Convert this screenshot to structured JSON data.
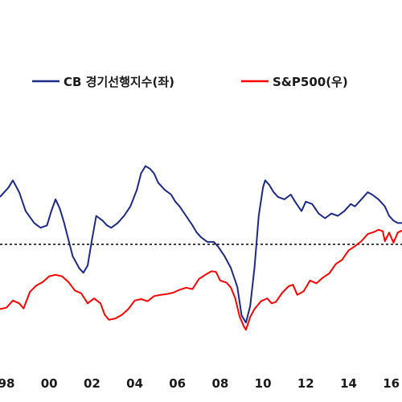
{
  "chart_data": {
    "type": "line",
    "x_tick_labels": [
      "98",
      "00",
      "02",
      "04",
      "06",
      "08",
      "10",
      "12",
      "14",
      "16"
    ],
    "x_tick_years": [
      1998,
      2000,
      2002,
      2004,
      2006,
      2008,
      2010,
      2012,
      2014,
      2016
    ],
    "x_range": [
      1997.7,
      2016.5
    ],
    "reference_line": {
      "style": "dotted",
      "level": 0
    },
    "series": [
      {
        "name": "CB 경기선행지수(좌)",
        "axis": "left",
        "color": "#1c2a86",
        "points": [
          [
            1997.7,
            2.0
          ],
          [
            1998.1,
            2.4
          ],
          [
            1998.3,
            2.7
          ],
          [
            1998.6,
            2.2
          ],
          [
            1998.9,
            1.4
          ],
          [
            1999.3,
            0.9
          ],
          [
            1999.6,
            0.7
          ],
          [
            1999.9,
            0.8
          ],
          [
            2000.1,
            1.4
          ],
          [
            2000.3,
            1.9
          ],
          [
            2000.5,
            1.5
          ],
          [
            2000.7,
            0.9
          ],
          [
            2000.9,
            0.2
          ],
          [
            2001.1,
            -0.5
          ],
          [
            2001.4,
            -1.0
          ],
          [
            2001.6,
            -1.2
          ],
          [
            2001.8,
            -0.9
          ],
          [
            2002.0,
            0.2
          ],
          [
            2002.2,
            1.2
          ],
          [
            2002.5,
            1.0
          ],
          [
            2002.7,
            0.8
          ],
          [
            2002.9,
            0.7
          ],
          [
            2003.2,
            0.9
          ],
          [
            2003.5,
            1.2
          ],
          [
            2003.8,
            1.6
          ],
          [
            2004.1,
            2.3
          ],
          [
            2004.3,
            3.0
          ],
          [
            2004.5,
            3.3
          ],
          [
            2004.7,
            3.2
          ],
          [
            2004.9,
            3.0
          ],
          [
            2005.1,
            2.6
          ],
          [
            2005.4,
            2.3
          ],
          [
            2005.7,
            2.1
          ],
          [
            2005.9,
            1.8
          ],
          [
            2006.1,
            1.6
          ],
          [
            2006.4,
            1.2
          ],
          [
            2006.7,
            0.8
          ],
          [
            2006.9,
            0.5
          ],
          [
            2007.1,
            0.3
          ],
          [
            2007.4,
            0.1
          ],
          [
            2007.7,
            0.1
          ],
          [
            2007.9,
            -0.1
          ],
          [
            2008.2,
            -0.5
          ],
          [
            2008.5,
            -1.0
          ],
          [
            2008.8,
            -1.8
          ],
          [
            2009.0,
            -3.0
          ],
          [
            2009.2,
            -3.3
          ],
          [
            2009.4,
            -2.6
          ],
          [
            2009.6,
            -1.0
          ],
          [
            2009.8,
            1.2
          ],
          [
            2010.0,
            2.4
          ],
          [
            2010.1,
            2.7
          ],
          [
            2010.3,
            2.5
          ],
          [
            2010.5,
            2.2
          ],
          [
            2010.7,
            2.0
          ],
          [
            2011.0,
            1.9
          ],
          [
            2011.3,
            2.1
          ],
          [
            2011.5,
            1.8
          ],
          [
            2011.8,
            1.4
          ],
          [
            2012.0,
            1.8
          ],
          [
            2012.3,
            1.7
          ],
          [
            2012.6,
            1.3
          ],
          [
            2012.9,
            1.1
          ],
          [
            2013.2,
            1.3
          ],
          [
            2013.5,
            1.2
          ],
          [
            2013.8,
            1.4
          ],
          [
            2014.1,
            1.7
          ],
          [
            2014.3,
            1.6
          ],
          [
            2014.6,
            1.9
          ],
          [
            2014.9,
            2.2
          ],
          [
            2015.1,
            2.1
          ],
          [
            2015.4,
            1.9
          ],
          [
            2015.7,
            1.6
          ],
          [
            2015.9,
            1.2
          ],
          [
            2016.1,
            1.0
          ],
          [
            2016.3,
            0.9
          ],
          [
            2016.5,
            0.9
          ]
        ]
      },
      {
        "name": "S&P500(우)",
        "axis": "right",
        "color": "#ff0000",
        "points": [
          [
            1997.7,
            1000
          ],
          [
            1998.0,
            1020
          ],
          [
            1998.3,
            1120
          ],
          [
            1998.6,
            1080
          ],
          [
            1998.8,
            1010
          ],
          [
            1999.1,
            1240
          ],
          [
            1999.4,
            1330
          ],
          [
            1999.7,
            1380
          ],
          [
            2000.0,
            1460
          ],
          [
            2000.3,
            1480
          ],
          [
            2000.6,
            1460
          ],
          [
            2000.9,
            1380
          ],
          [
            2001.2,
            1260
          ],
          [
            2001.5,
            1220
          ],
          [
            2001.8,
            1080
          ],
          [
            2002.1,
            1150
          ],
          [
            2002.4,
            1080
          ],
          [
            2002.6,
            920
          ],
          [
            2002.8,
            850
          ],
          [
            2003.1,
            870
          ],
          [
            2003.4,
            920
          ],
          [
            2003.7,
            1000
          ],
          [
            2004.0,
            1120
          ],
          [
            2004.3,
            1140
          ],
          [
            2004.6,
            1110
          ],
          [
            2004.9,
            1180
          ],
          [
            2005.2,
            1200
          ],
          [
            2005.5,
            1210
          ],
          [
            2005.8,
            1230
          ],
          [
            2006.1,
            1270
          ],
          [
            2006.4,
            1300
          ],
          [
            2006.7,
            1280
          ],
          [
            2007.0,
            1420
          ],
          [
            2007.3,
            1480
          ],
          [
            2007.6,
            1530
          ],
          [
            2007.8,
            1520
          ],
          [
            2008.0,
            1400
          ],
          [
            2008.3,
            1370
          ],
          [
            2008.5,
            1300
          ],
          [
            2008.7,
            1150
          ],
          [
            2008.9,
            900
          ],
          [
            2009.1,
            760
          ],
          [
            2009.2,
            710
          ],
          [
            2009.4,
            890
          ],
          [
            2009.6,
            1000
          ],
          [
            2009.9,
            1110
          ],
          [
            2010.2,
            1150
          ],
          [
            2010.4,
            1080
          ],
          [
            2010.6,
            1100
          ],
          [
            2010.9,
            1230
          ],
          [
            2011.2,
            1320
          ],
          [
            2011.4,
            1340
          ],
          [
            2011.6,
            1200
          ],
          [
            2011.9,
            1250
          ],
          [
            2012.2,
            1400
          ],
          [
            2012.5,
            1360
          ],
          [
            2012.8,
            1440
          ],
          [
            2013.1,
            1500
          ],
          [
            2013.4,
            1630
          ],
          [
            2013.7,
            1690
          ],
          [
            2014.0,
            1820
          ],
          [
            2014.3,
            1880
          ],
          [
            2014.6,
            1950
          ],
          [
            2014.9,
            2050
          ],
          [
            2015.2,
            2080
          ],
          [
            2015.4,
            2110
          ],
          [
            2015.6,
            2090
          ],
          [
            2015.7,
            1950
          ],
          [
            2015.9,
            2070
          ],
          [
            2016.1,
            1930
          ],
          [
            2016.3,
            2070
          ],
          [
            2016.5,
            2100
          ]
        ]
      }
    ],
    "legend": {
      "position": "top"
    }
  }
}
